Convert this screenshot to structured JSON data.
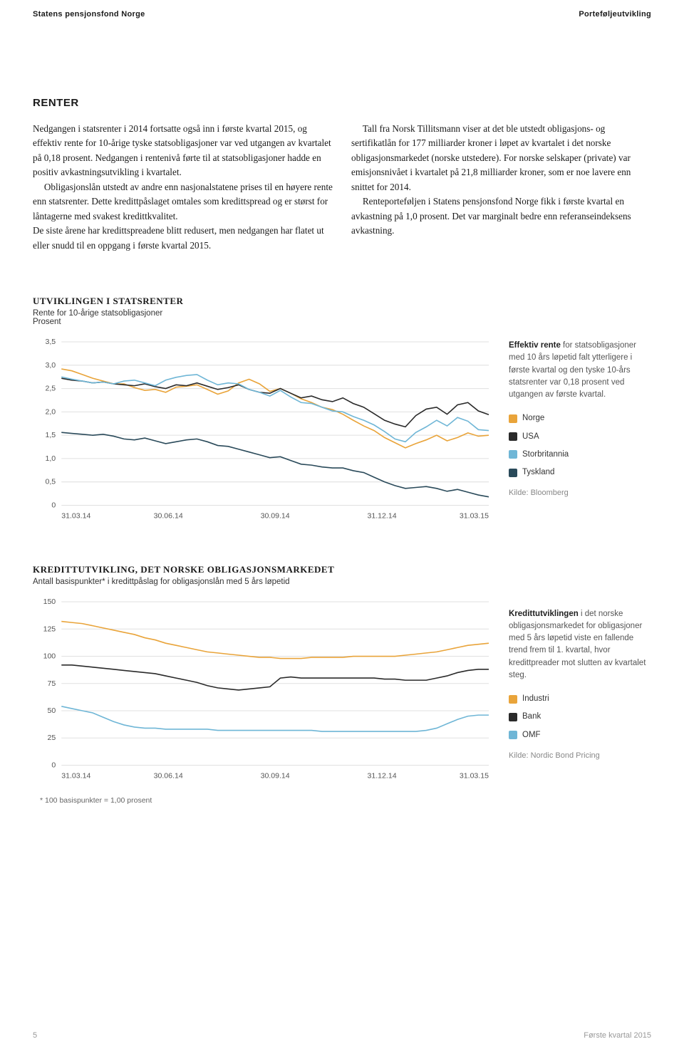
{
  "header": {
    "left": "Statens pensjonsfond Norge",
    "right": "Porteføljeutvikling"
  },
  "section": {
    "title": "RENTER",
    "p1": "Nedgangen i statsrenter i 2014 fortsatte også inn i første kvartal 2015, og effektiv rente for 10-årige tyske statsobligasjoner var ved utgangen av kvartalet på 0,18 prosent. Nedgangen i rentenivå førte til at statsobligasjoner hadde en positiv avkastningsutvikling i kvartalet.",
    "p2": "Obligasjonslån utstedt av andre enn nasjonalstatene prises til en høyere rente enn statsrenter. Dette kredittpåslaget omtales som kredittspread og er størst for låntagerne med svakest kredittkvalitet.",
    "p3": "De siste årene har kredittspreadene blitt redusert, men nedgangen har flatet ut eller snudd til en oppgang i første kvartal 2015.",
    "p4": "Tall fra Norsk Tillitsmann viser at det ble utstedt obligasjons- og sertifikatlån for 177 milliarder kroner i løpet av kvartalet i det norske obligasjonsmarkedet (norske utstedere). For norske selskaper (private) var emisjonsnivået i kvartalet på 21,8 milliarder kroner, som er noe lavere enn snittet for 2014.",
    "p5": "Renteporteføljen i Statens pensjonsfond Norge fikk i første kvartal en avkastning på 1,0 prosent. Det var marginalt bedre enn referanseindeksens avkastning."
  },
  "chart1": {
    "heading": "UTVIKLINGEN I STATSRENTER",
    "subtitle1": "Rente for 10-årige statsobligasjoner",
    "subtitle2": "Prosent",
    "ylim": [
      0,
      3.5
    ],
    "ytick_step": 0.5,
    "yticks": [
      "0",
      "0,5",
      "1,0",
      "1,5",
      "2,0",
      "2,5",
      "3,0",
      "3,5"
    ],
    "xticks": [
      "31.03.14",
      "30.06.14",
      "30.09.14",
      "31.12.14",
      "31.03.15"
    ],
    "background_color": "#ffffff",
    "grid_color": "#e0e0e0",
    "line_width": 1.6,
    "series": {
      "norge": {
        "color": "#e9a43a",
        "points": [
          2.92,
          2.88,
          2.8,
          2.72,
          2.66,
          2.6,
          2.6,
          2.52,
          2.46,
          2.48,
          2.42,
          2.53,
          2.55,
          2.58,
          2.48,
          2.38,
          2.45,
          2.62,
          2.7,
          2.6,
          2.44,
          2.5,
          2.4,
          2.28,
          2.2,
          2.1,
          2.05,
          1.95,
          1.82,
          1.7,
          1.6,
          1.45,
          1.34,
          1.23,
          1.32,
          1.4,
          1.5,
          1.38,
          1.45,
          1.55,
          1.48,
          1.5
        ]
      },
      "usa": {
        "color": "#2a2a2a",
        "points": [
          2.72,
          2.68,
          2.66,
          2.62,
          2.64,
          2.6,
          2.58,
          2.56,
          2.6,
          2.54,
          2.5,
          2.58,
          2.56,
          2.62,
          2.55,
          2.48,
          2.52,
          2.58,
          2.48,
          2.42,
          2.4,
          2.5,
          2.4,
          2.3,
          2.34,
          2.26,
          2.22,
          2.3,
          2.18,
          2.1,
          1.96,
          1.82,
          1.74,
          1.68,
          1.92,
          2.06,
          2.1,
          1.95,
          2.15,
          2.2,
          2.02,
          1.94
        ]
      },
      "storbritannia": {
        "color": "#6fb6d6",
        "points": [
          2.75,
          2.7,
          2.66,
          2.62,
          2.64,
          2.6,
          2.66,
          2.68,
          2.62,
          2.56,
          2.68,
          2.74,
          2.78,
          2.8,
          2.68,
          2.58,
          2.62,
          2.6,
          2.48,
          2.42,
          2.34,
          2.46,
          2.32,
          2.2,
          2.18,
          2.1,
          2.02,
          2.0,
          1.9,
          1.82,
          1.72,
          1.58,
          1.42,
          1.36,
          1.56,
          1.68,
          1.82,
          1.7,
          1.88,
          1.8,
          1.62,
          1.6
        ]
      },
      "tyskland": {
        "color": "#2a4a5a",
        "points": [
          1.56,
          1.54,
          1.52,
          1.5,
          1.52,
          1.48,
          1.42,
          1.4,
          1.44,
          1.38,
          1.32,
          1.36,
          1.4,
          1.42,
          1.36,
          1.28,
          1.26,
          1.2,
          1.14,
          1.08,
          1.02,
          1.04,
          0.96,
          0.88,
          0.86,
          0.82,
          0.8,
          0.8,
          0.74,
          0.7,
          0.6,
          0.5,
          0.42,
          0.36,
          0.38,
          0.4,
          0.36,
          0.3,
          0.34,
          0.28,
          0.22,
          0.18
        ]
      }
    },
    "description_strong": "Effektiv rente",
    "description_rest": " for statsobligasjoner med 10 års løpetid falt ytterligere i første kvartal og den tyske 10-års statsrenter var 0,18 prosent ved utgangen av første kvartal.",
    "legend": [
      {
        "label": "Norge",
        "color": "#e9a43a"
      },
      {
        "label": "USA",
        "color": "#2a2a2a"
      },
      {
        "label": "Storbritannia",
        "color": "#6fb6d6"
      },
      {
        "label": "Tyskland",
        "color": "#2a4a5a"
      }
    ],
    "source": "Kilde: Bloomberg"
  },
  "chart2": {
    "heading": "KREDITTUTVIKLING, DET NORSKE OBLIGASJONSMARKEDET",
    "subtitle": "Antall basispunkter* i kredittpåslag for obligasjonslån med 5 års løpetid",
    "ylim": [
      0,
      150
    ],
    "ytick_step": 25,
    "yticks": [
      "0",
      "25",
      "50",
      "75",
      "100",
      "125",
      "150"
    ],
    "xticks": [
      "31.03.14",
      "30.06.14",
      "30.09.14",
      "31.12.14",
      "31.03.15"
    ],
    "background_color": "#ffffff",
    "grid_color": "#e0e0e0",
    "line_width": 1.6,
    "series": {
      "industri": {
        "color": "#e9a43a",
        "points": [
          132,
          131,
          130,
          128,
          126,
          124,
          122,
          120,
          117,
          115,
          112,
          110,
          108,
          106,
          104,
          103,
          102,
          101,
          100,
          99,
          99,
          98,
          98,
          98,
          99,
          99,
          99,
          99,
          100,
          100,
          100,
          100,
          100,
          101,
          102,
          103,
          104,
          106,
          108,
          110,
          111,
          112
        ]
      },
      "bank": {
        "color": "#2a2a2a",
        "points": [
          92,
          92,
          91,
          90,
          89,
          88,
          87,
          86,
          85,
          84,
          82,
          80,
          78,
          76,
          73,
          71,
          70,
          69,
          70,
          71,
          72,
          80,
          81,
          80,
          80,
          80,
          80,
          80,
          80,
          80,
          80,
          79,
          79,
          78,
          78,
          78,
          80,
          82,
          85,
          87,
          88,
          88
        ]
      },
      "omf": {
        "color": "#6fb6d6",
        "points": [
          54,
          52,
          50,
          48,
          44,
          40,
          37,
          35,
          34,
          34,
          33,
          33,
          33,
          33,
          33,
          32,
          32,
          32,
          32,
          32,
          32,
          32,
          32,
          32,
          32,
          31,
          31,
          31,
          31,
          31,
          31,
          31,
          31,
          31,
          31,
          32,
          34,
          38,
          42,
          45,
          46,
          46
        ]
      }
    },
    "description_strong": "Kredittutviklingen",
    "description_rest": " i det norske obligasjonsmarkedet for obligasjoner med 5 års løpetid viste en fallende trend frem til 1. kvartal, hvor kredittpreader mot slutten av kvartalet steg.",
    "legend": [
      {
        "label": "Industri",
        "color": "#e9a43a"
      },
      {
        "label": "Bank",
        "color": "#2a2a2a"
      },
      {
        "label": "OMF",
        "color": "#6fb6d6"
      }
    ],
    "source": "Kilde: Nordic Bond Pricing",
    "footnote": "* 100 basispunkter = 1,00 prosent"
  },
  "footer": {
    "page": "5",
    "label": "Første kvartal 2015"
  }
}
